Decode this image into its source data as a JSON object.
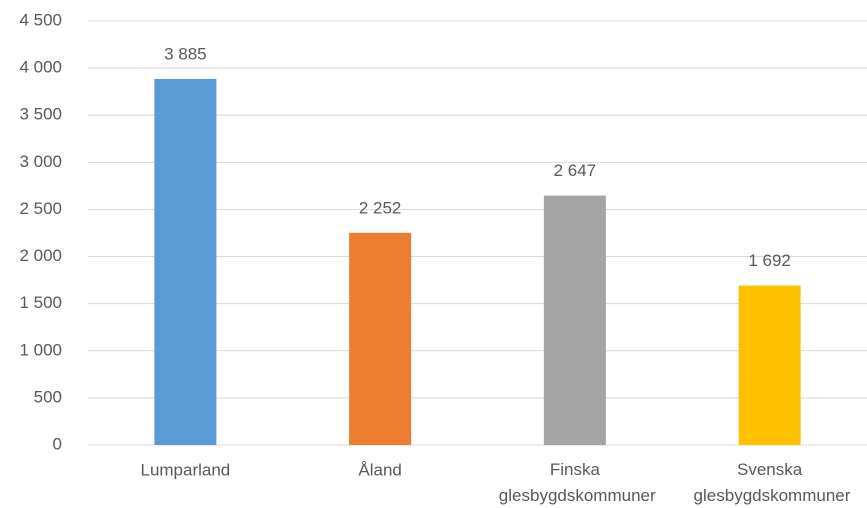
{
  "chart_data": {
    "type": "bar",
    "categories": [
      "Lumparland",
      "Åland",
      "Finska glesbygdskommuner",
      "Svenska glesbygdskommuner"
    ],
    "values": [
      3885,
      2252,
      2647,
      1692
    ],
    "value_labels": [
      "3 885",
      "2 252",
      "2 647",
      "1 692"
    ],
    "colors": [
      "#5b9bd5",
      "#ed7d31",
      "#a5a5a5",
      "#ffc000"
    ],
    "ylim": [
      0,
      4500
    ],
    "yticks": [
      0,
      500,
      {
        "value": 1000,
        "label": "1 000"
      },
      {
        "value": 1500,
        "label": "1 500"
      },
      {
        "value": 2000,
        "label": "2 000"
      },
      {
        "value": 2500,
        "label": "2 500"
      },
      {
        "value": 3000,
        "label": "3 000"
      },
      {
        "value": 3500,
        "label": "3 500"
      },
      {
        "value": 4000,
        "label": "4 000"
      },
      {
        "value": 4500,
        "label": "4 500"
      }
    ],
    "grid": true
  }
}
